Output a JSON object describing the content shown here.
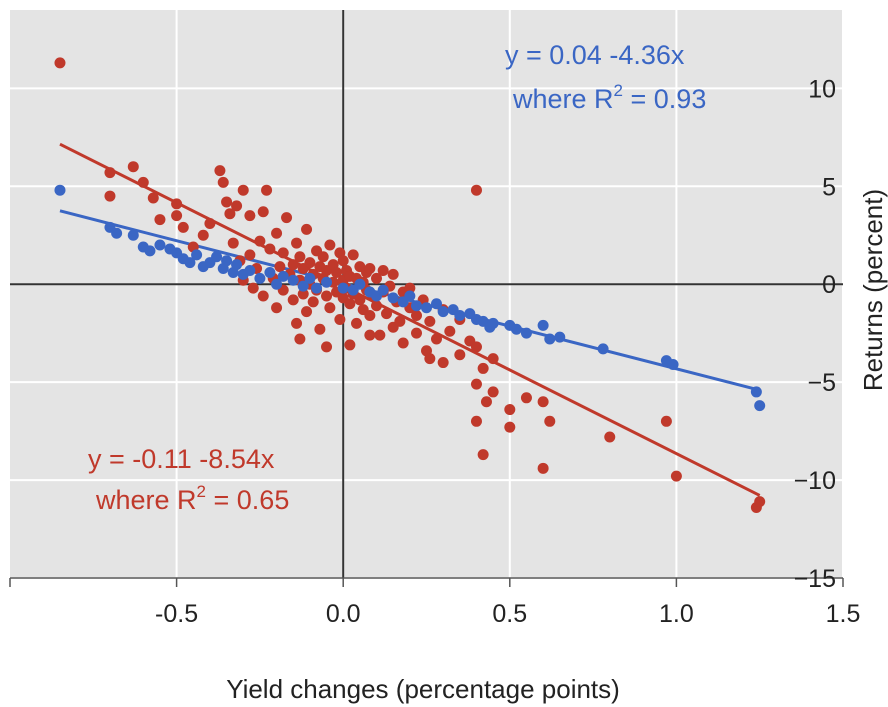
{
  "chart_data": {
    "type": "scatter",
    "xlabel": "Yield changes (percentage points)",
    "ylabel": "Returns (percent)",
    "xlim": [
      -1.0,
      1.5
    ],
    "ylim": [
      -15,
      14
    ],
    "x_ticks": [
      "-0.5",
      "0.0",
      "0.5",
      "1.0",
      "1.5"
    ],
    "y_ticks": [
      "10",
      "5",
      "0",
      "-5",
      "-10",
      "-15"
    ],
    "grid": true,
    "background": "#e4e4e4",
    "series": [
      {
        "color": "#c0392b",
        "regression": {
          "intercept": -0.11,
          "slope": -8.54,
          "x_range": [
            -0.85,
            1.25
          ]
        },
        "annotation_line1": "y = -0.11 -8.54x",
        "annotation_line2_prefix": "where R",
        "annotation_sup": "2",
        "annotation_line2_suffix": " = 0.65",
        "points": [
          [
            -0.85,
            11.3
          ],
          [
            -0.7,
            5.7
          ],
          [
            -0.7,
            4.5
          ],
          [
            -0.63,
            6.0
          ],
          [
            -0.6,
            5.2
          ],
          [
            -0.57,
            4.4
          ],
          [
            -0.55,
            3.3
          ],
          [
            -0.5,
            4.1
          ],
          [
            -0.5,
            3.5
          ],
          [
            -0.48,
            2.9
          ],
          [
            -0.45,
            1.9
          ],
          [
            -0.42,
            2.5
          ],
          [
            -0.4,
            3.1
          ],
          [
            -0.37,
            5.8
          ],
          [
            -0.36,
            5.2
          ],
          [
            -0.35,
            4.2
          ],
          [
            -0.34,
            3.6
          ],
          [
            -0.33,
            2.1
          ],
          [
            -0.32,
            4.0
          ],
          [
            -0.31,
            1.2
          ],
          [
            -0.3,
            0.2
          ],
          [
            -0.3,
            4.8
          ],
          [
            -0.28,
            3.5
          ],
          [
            -0.28,
            1.5
          ],
          [
            -0.27,
            -0.2
          ],
          [
            -0.26,
            0.8
          ],
          [
            -0.25,
            2.2
          ],
          [
            -0.24,
            -0.6
          ],
          [
            -0.24,
            3.7
          ],
          [
            -0.23,
            4.8
          ],
          [
            -0.22,
            1.8
          ],
          [
            -0.21,
            0.3
          ],
          [
            -0.2,
            -1.2
          ],
          [
            -0.2,
            2.6
          ],
          [
            -0.19,
            0.9
          ],
          [
            -0.18,
            -0.3
          ],
          [
            -0.18,
            1.6
          ],
          [
            -0.17,
            3.4
          ],
          [
            -0.16,
            0.5
          ],
          [
            -0.15,
            -0.8
          ],
          [
            -0.15,
            1.0
          ],
          [
            -0.14,
            2.1
          ],
          [
            -0.14,
            -2.0
          ],
          [
            -0.13,
            0.2
          ],
          [
            -0.13,
            1.4
          ],
          [
            -0.12,
            -0.5
          ],
          [
            -0.12,
            0.8
          ],
          [
            -0.11,
            -1.4
          ],
          [
            -0.11,
            2.8
          ],
          [
            -0.1,
            0.0
          ],
          [
            -0.1,
            1.1
          ],
          [
            -0.09,
            -0.9
          ],
          [
            -0.09,
            0.5
          ],
          [
            -0.08,
            1.7
          ],
          [
            -0.08,
            -0.3
          ],
          [
            -0.07,
            0.9
          ],
          [
            -0.07,
            -2.3
          ],
          [
            -0.06,
            0.3
          ],
          [
            -0.06,
            1.4
          ],
          [
            -0.05,
            -0.6
          ],
          [
            -0.05,
            0.7
          ],
          [
            -0.04,
            2.0
          ],
          [
            -0.04,
            -1.2
          ],
          [
            -0.03,
            0.1
          ],
          [
            -0.03,
            1.0
          ],
          [
            -0.02,
            -0.4
          ],
          [
            -0.02,
            0.6
          ],
          [
            -0.01,
            1.6
          ],
          [
            -0.01,
            -1.8
          ],
          [
            0.0,
            0.2
          ],
          [
            0.0,
            -0.7
          ],
          [
            0.0,
            1.2
          ],
          [
            0.01,
            -0.2
          ],
          [
            0.01,
            0.7
          ],
          [
            0.02,
            -1.0
          ],
          [
            0.02,
            0.4
          ],
          [
            0.03,
            1.5
          ],
          [
            0.03,
            -0.5
          ],
          [
            0.04,
            0.3
          ],
          [
            0.04,
            -2.0
          ],
          [
            0.05,
            -0.8
          ],
          [
            0.05,
            0.9
          ],
          [
            0.06,
            0.1
          ],
          [
            0.06,
            -1.3
          ],
          [
            0.07,
            0.6
          ],
          [
            0.07,
            -0.3
          ],
          [
            0.08,
            -1.6
          ],
          [
            0.08,
            0.8
          ],
          [
            0.09,
            -0.6
          ],
          [
            0.1,
            0.3
          ],
          [
            0.1,
            -1.1
          ],
          [
            0.11,
            -2.6
          ],
          [
            0.12,
            -0.4
          ],
          [
            0.12,
            0.7
          ],
          [
            0.13,
            -1.5
          ],
          [
            0.14,
            -0.1
          ],
          [
            0.15,
            -2.2
          ],
          [
            0.15,
            0.5
          ],
          [
            0.16,
            -0.9
          ],
          [
            0.17,
            -1.9
          ],
          [
            0.18,
            -0.4
          ],
          [
            0.18,
            -3.0
          ],
          [
            0.2,
            -1.2
          ],
          [
            0.2,
            -0.2
          ],
          [
            0.22,
            -2.5
          ],
          [
            0.22,
            -1.6
          ],
          [
            0.24,
            -0.8
          ],
          [
            0.25,
            -3.4
          ],
          [
            0.26,
            -1.9
          ],
          [
            0.28,
            -2.8
          ],
          [
            0.3,
            -1.3
          ],
          [
            0.3,
            -4.0
          ],
          [
            0.32,
            -2.4
          ],
          [
            0.35,
            -3.6
          ],
          [
            0.35,
            -1.8
          ],
          [
            0.38,
            -2.9
          ],
          [
            0.4,
            -5.1
          ],
          [
            0.4,
            -3.2
          ],
          [
            0.42,
            -4.3
          ],
          [
            0.43,
            -6.0
          ],
          [
            0.45,
            -3.8
          ],
          [
            0.4,
            -7.0
          ],
          [
            0.42,
            -8.7
          ],
          [
            0.45,
            -5.5
          ],
          [
            0.5,
            -6.4
          ],
          [
            0.5,
            -7.3
          ],
          [
            0.55,
            -5.8
          ],
          [
            0.6,
            -6.0
          ],
          [
            0.6,
            -9.4
          ],
          [
            0.62,
            -7.0
          ],
          [
            0.8,
            -7.8
          ],
          [
            0.97,
            -7.0
          ],
          [
            1.0,
            -9.8
          ],
          [
            1.24,
            -11.4
          ],
          [
            1.25,
            -11.1
          ],
          [
            0.4,
            4.8
          ],
          [
            -0.13,
            -2.8
          ],
          [
            -0.05,
            -3.2
          ],
          [
            0.02,
            -3.1
          ],
          [
            0.08,
            -2.6
          ],
          [
            0.26,
            -3.8
          ]
        ]
      },
      {
        "color": "#3a66c4",
        "regression": {
          "intercept": 0.04,
          "slope": -4.36,
          "x_range": [
            -0.85,
            1.25
          ]
        },
        "annotation_line1": "y = 0.04 -4.36x",
        "annotation_line2_prefix": "where R",
        "annotation_sup": "2",
        "annotation_line2_suffix": " = 0.93",
        "points": [
          [
            -0.85,
            4.8
          ],
          [
            -0.7,
            2.9
          ],
          [
            -0.68,
            2.6
          ],
          [
            -0.63,
            2.5
          ],
          [
            -0.6,
            1.9
          ],
          [
            -0.58,
            1.7
          ],
          [
            -0.55,
            2.0
          ],
          [
            -0.52,
            1.8
          ],
          [
            -0.5,
            1.6
          ],
          [
            -0.48,
            1.3
          ],
          [
            -0.46,
            1.1
          ],
          [
            -0.44,
            1.5
          ],
          [
            -0.42,
            0.9
          ],
          [
            -0.4,
            1.1
          ],
          [
            -0.38,
            1.4
          ],
          [
            -0.36,
            0.8
          ],
          [
            -0.35,
            1.2
          ],
          [
            -0.33,
            0.6
          ],
          [
            -0.32,
            1.0
          ],
          [
            -0.3,
            0.5
          ],
          [
            -0.28,
            0.7
          ],
          [
            -0.25,
            0.3
          ],
          [
            -0.22,
            0.6
          ],
          [
            -0.2,
            0.0
          ],
          [
            -0.18,
            0.4
          ],
          [
            -0.15,
            0.2
          ],
          [
            -0.12,
            -0.1
          ],
          [
            -0.1,
            0.3
          ],
          [
            -0.08,
            -0.2
          ],
          [
            -0.05,
            0.1
          ],
          [
            0.0,
            -0.2
          ],
          [
            0.03,
            -0.3
          ],
          [
            0.05,
            0.0
          ],
          [
            0.08,
            -0.4
          ],
          [
            0.1,
            -0.6
          ],
          [
            0.12,
            -0.3
          ],
          [
            0.15,
            -0.7
          ],
          [
            0.18,
            -0.9
          ],
          [
            0.2,
            -0.6
          ],
          [
            0.22,
            -1.1
          ],
          [
            0.25,
            -1.2
          ],
          [
            0.28,
            -1.0
          ],
          [
            0.3,
            -1.4
          ],
          [
            0.33,
            -1.3
          ],
          [
            0.35,
            -1.6
          ],
          [
            0.38,
            -1.5
          ],
          [
            0.4,
            -1.8
          ],
          [
            0.42,
            -1.9
          ],
          [
            0.44,
            -2.2
          ],
          [
            0.45,
            -2.0
          ],
          [
            0.5,
            -2.1
          ],
          [
            0.52,
            -2.3
          ],
          [
            0.55,
            -2.5
          ],
          [
            0.6,
            -2.1
          ],
          [
            0.62,
            -2.8
          ],
          [
            0.65,
            -2.7
          ],
          [
            0.78,
            -3.3
          ],
          [
            0.97,
            -3.9
          ],
          [
            0.99,
            -4.1
          ],
          [
            1.24,
            -5.5
          ],
          [
            1.25,
            -6.2
          ]
        ]
      }
    ]
  }
}
